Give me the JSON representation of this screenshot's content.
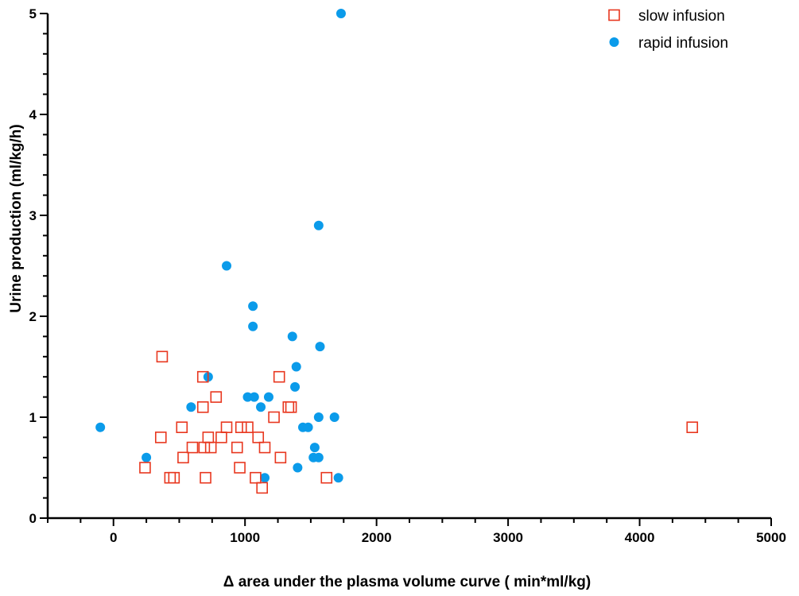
{
  "chart_data": {
    "type": "scatter",
    "xlabel": "Δ area under the plasma volume curve ( min*ml/kg)",
    "ylabel": "Urine production (ml/kg/h)",
    "xlim": [
      -500,
      5000
    ],
    "ylim": [
      0,
      5
    ],
    "x_ticks": [
      0,
      1000,
      2000,
      3000,
      4000,
      5000
    ],
    "y_ticks": [
      0,
      1,
      2,
      3,
      4,
      5
    ],
    "grid": false,
    "legend_position": "top-right",
    "series": [
      {
        "name": "slow infusion",
        "marker": "open-square",
        "color": "#e8371f",
        "points": [
          [
            240,
            0.5
          ],
          [
            360,
            0.8
          ],
          [
            370,
            1.6
          ],
          [
            430,
            0.4
          ],
          [
            460,
            0.4
          ],
          [
            520,
            0.9
          ],
          [
            530,
            0.6
          ],
          [
            600,
            0.7
          ],
          [
            680,
            1.4
          ],
          [
            680,
            1.1
          ],
          [
            690,
            0.7
          ],
          [
            700,
            0.4
          ],
          [
            720,
            0.8
          ],
          [
            740,
            0.7
          ],
          [
            780,
            1.2
          ],
          [
            820,
            0.8
          ],
          [
            860,
            0.9
          ],
          [
            940,
            0.7
          ],
          [
            960,
            0.5
          ],
          [
            970,
            0.9
          ],
          [
            1020,
            0.9
          ],
          [
            1080,
            0.4
          ],
          [
            1100,
            0.8
          ],
          [
            1130,
            0.3
          ],
          [
            1150,
            0.7
          ],
          [
            1220,
            1.0
          ],
          [
            1260,
            1.4
          ],
          [
            1270,
            0.6
          ],
          [
            1330,
            1.1
          ],
          [
            1350,
            1.1
          ],
          [
            1620,
            0.4
          ],
          [
            4400,
            0.9
          ]
        ]
      },
      {
        "name": "rapid infusion",
        "marker": "filled-circle",
        "color": "#0b9bea",
        "points": [
          [
            -100,
            0.9
          ],
          [
            250,
            0.6
          ],
          [
            590,
            1.1
          ],
          [
            720,
            1.4
          ],
          [
            860,
            2.5
          ],
          [
            1020,
            1.2
          ],
          [
            1060,
            2.1
          ],
          [
            1060,
            1.9
          ],
          [
            1070,
            1.2
          ],
          [
            1120,
            1.1
          ],
          [
            1150,
            0.4
          ],
          [
            1180,
            1.2
          ],
          [
            1360,
            1.8
          ],
          [
            1380,
            1.3
          ],
          [
            1390,
            1.5
          ],
          [
            1400,
            0.5
          ],
          [
            1440,
            0.9
          ],
          [
            1480,
            0.9
          ],
          [
            1520,
            0.6
          ],
          [
            1530,
            0.7
          ],
          [
            1560,
            1.0
          ],
          [
            1560,
            0.6
          ],
          [
            1560,
            2.9
          ],
          [
            1570,
            1.7
          ],
          [
            1680,
            1.0
          ],
          [
            1710,
            0.4
          ],
          [
            1730,
            5.0
          ]
        ]
      }
    ]
  }
}
